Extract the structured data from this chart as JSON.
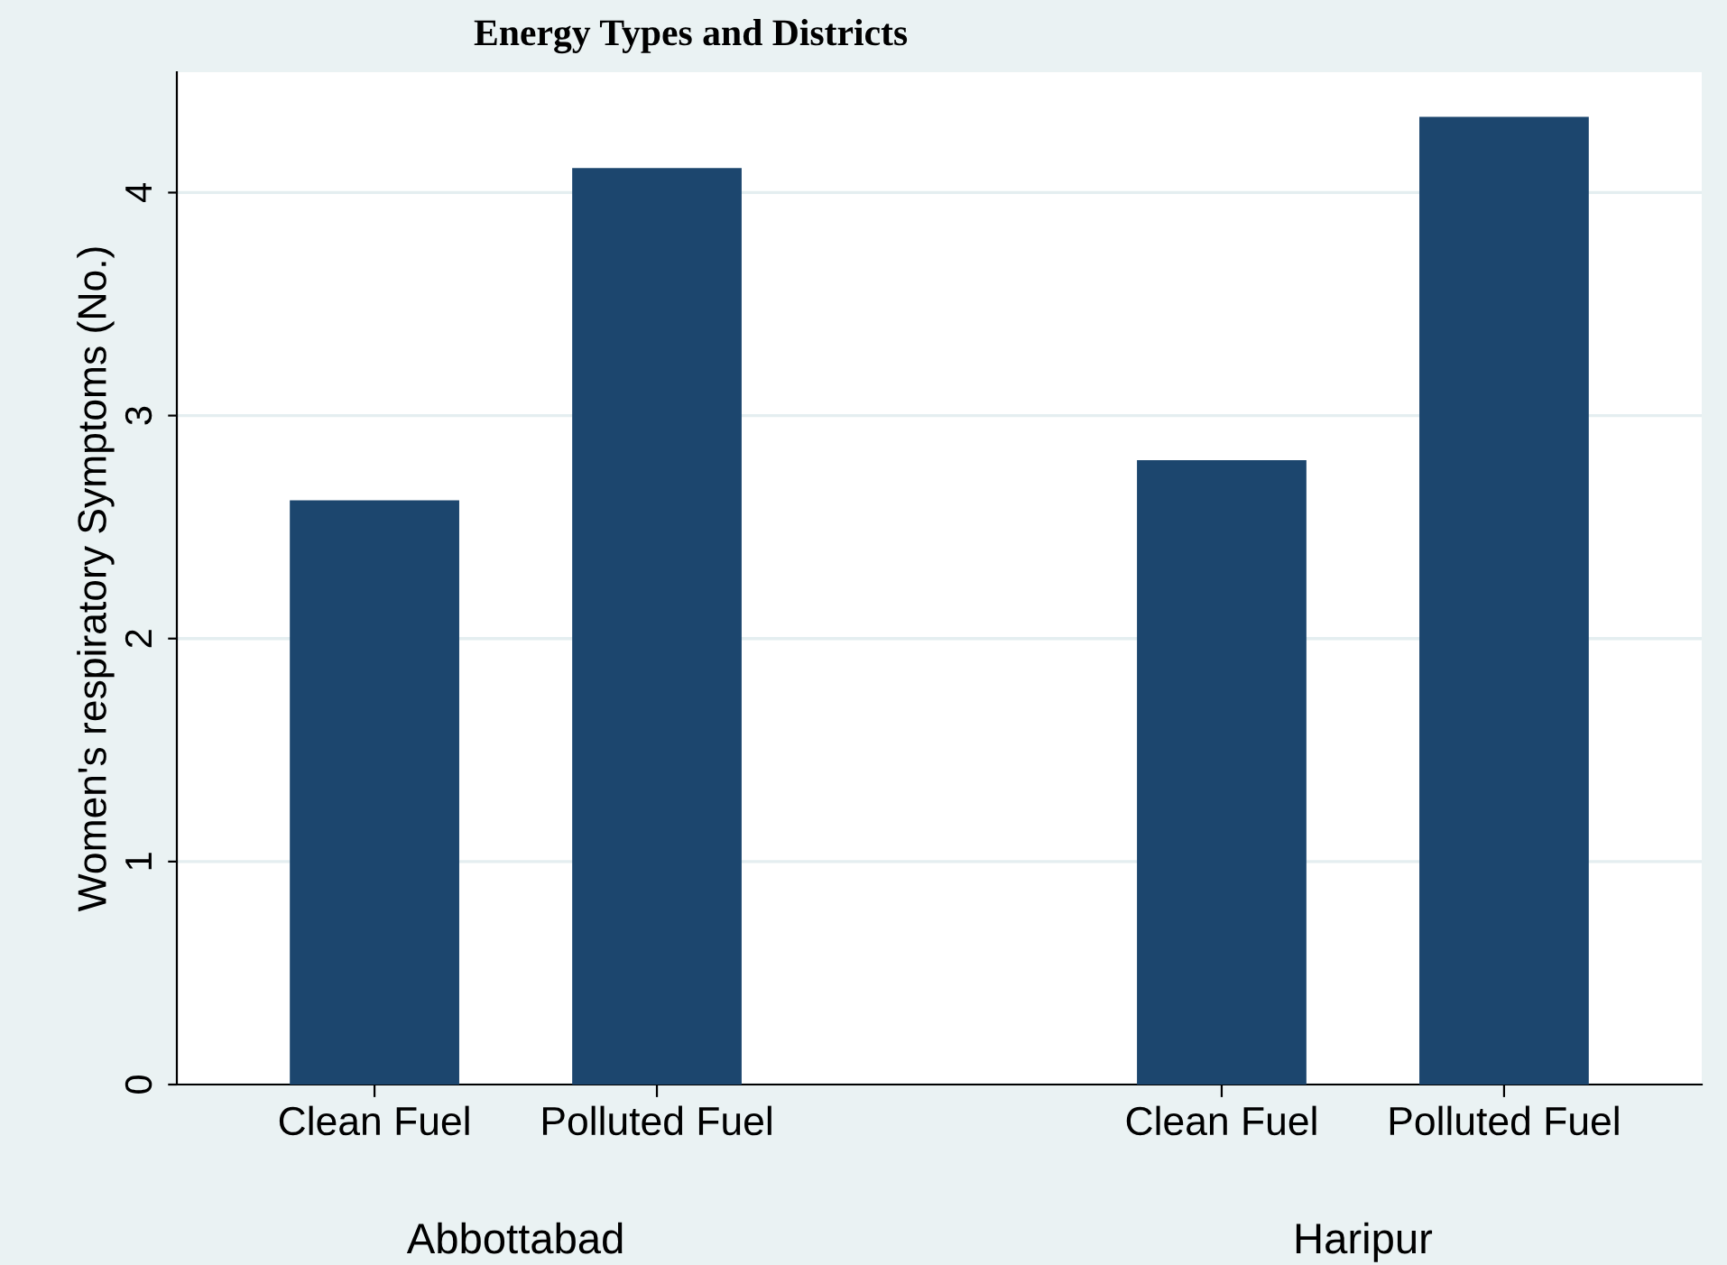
{
  "chart_data": {
    "type": "bar",
    "title": "Energy Types and Districts",
    "ylabel": "Women's respiratory Symptoms (No.)",
    "categories": [
      "Clean Fuel",
      "Polluted Fuel",
      null,
      "Clean Fuel",
      "Polluted Fuel"
    ],
    "values": [
      2.62,
      4.11,
      null,
      2.8,
      4.34
    ],
    "color": "#1c466e",
    "ylim": [
      0,
      4.54
    ],
    "yticks": [
      0,
      1,
      2,
      3,
      4
    ],
    "grid": "y",
    "annotations": [
      "Abbottabad",
      "Haripur"
    ]
  }
}
